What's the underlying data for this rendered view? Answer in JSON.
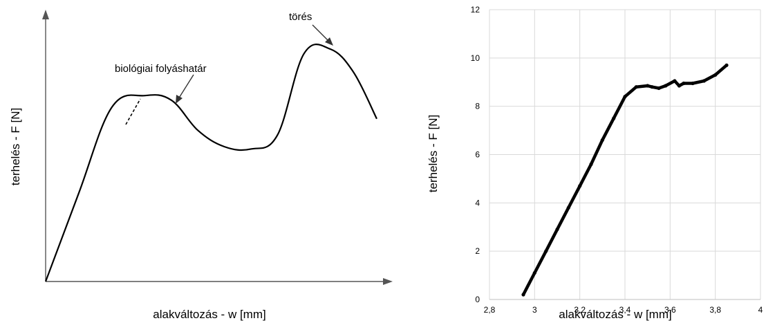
{
  "chart_data": [
    {
      "type": "line",
      "xlabel": "alakváltozás - w [mm]",
      "ylabel": "terhelés - F [N]",
      "axis_ticks": false,
      "grid": false,
      "annotations": [
        {
          "text": "biológiai folyáshatár",
          "points_to": "local maximum after the linear region"
        },
        {
          "text": "törés",
          "points_to": "global maximum"
        }
      ],
      "series": [
        {
          "x": [
            0.0,
            0.1,
            0.2,
            0.3,
            0.38,
            0.46,
            0.54,
            0.62,
            0.7,
            0.78,
            0.86,
            0.93,
            1.0
          ],
          "y": [
            0.0,
            0.38,
            0.75,
            0.8,
            0.78,
            0.65,
            0.58,
            0.57,
            0.63,
            0.98,
            1.0,
            0.9,
            0.7
          ]
        }
      ],
      "tangent_line": true
    },
    {
      "type": "scatter",
      "xlabel": "alakváltozás - w [mm]",
      "ylabel": "terhelés - F [N]",
      "xlim": [
        2.8,
        4.0
      ],
      "ylim": [
        0,
        12
      ],
      "xticks": [
        "2,8",
        "3",
        "3,2",
        "3,4",
        "3,6",
        "3,8",
        "4"
      ],
      "yticks": [
        "0",
        "2",
        "4",
        "6",
        "8",
        "10",
        "12"
      ],
      "grid": true,
      "series": [
        {
          "x": [
            2.95,
            3.0,
            3.05,
            3.1,
            3.15,
            3.2,
            3.25,
            3.3,
            3.35,
            3.4,
            3.45,
            3.5,
            3.52,
            3.55,
            3.58,
            3.62,
            3.64,
            3.66,
            3.7,
            3.75,
            3.8,
            3.85
          ],
          "y": [
            0.2,
            1.1,
            2.0,
            2.9,
            3.8,
            4.7,
            5.6,
            6.6,
            7.5,
            8.4,
            8.8,
            8.85,
            8.8,
            8.75,
            8.85,
            9.05,
            8.85,
            8.95,
            8.95,
            9.05,
            9.3,
            9.7
          ]
        }
      ]
    }
  ]
}
